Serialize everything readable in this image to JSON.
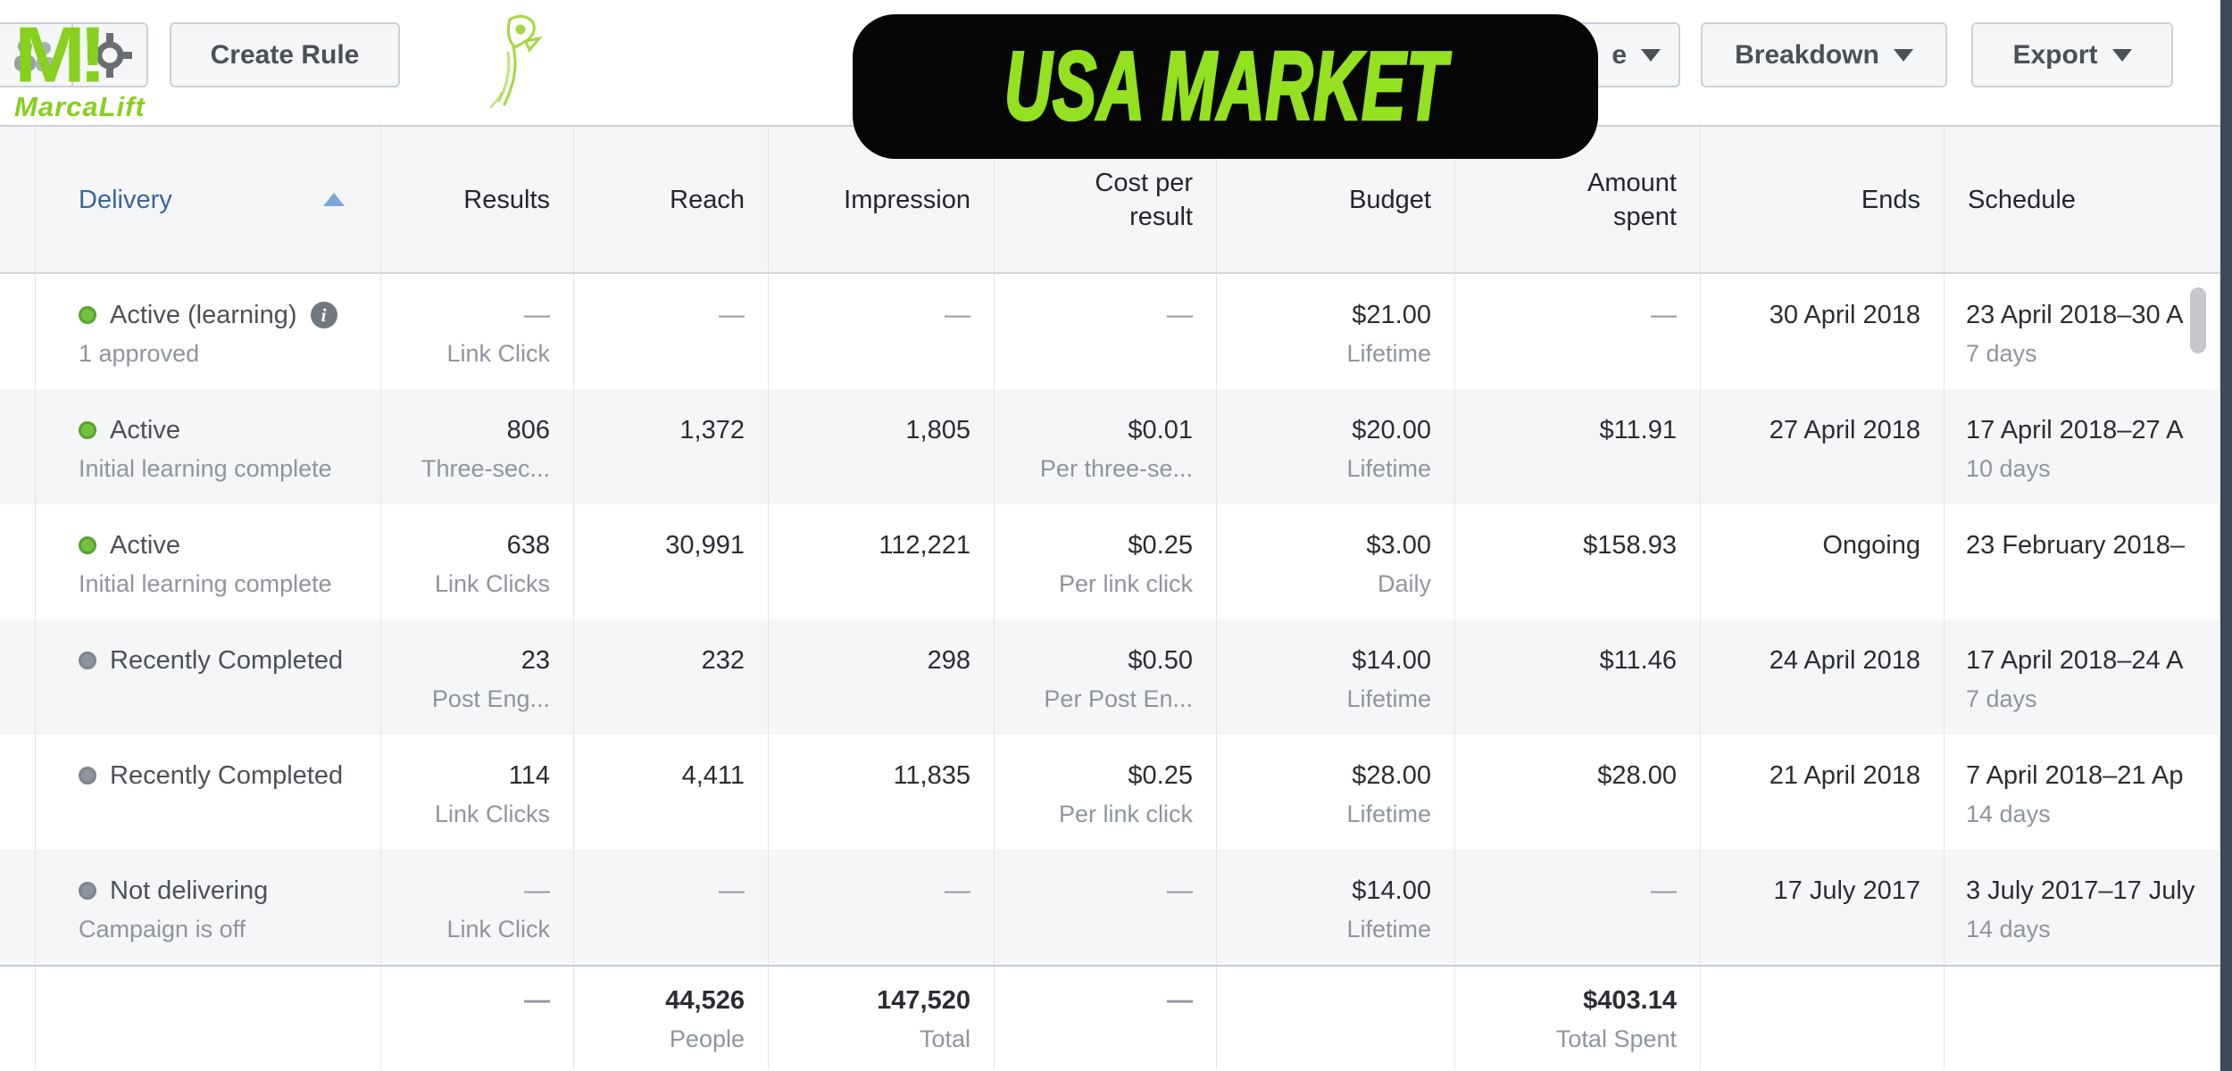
{
  "brand": {
    "logo_mark": "M!",
    "logo_name": "MarcaLift",
    "logo_color": "#86d01e"
  },
  "banner": {
    "text": "USA MARKET",
    "bg": "#060606",
    "text_color": "#93e120"
  },
  "toolbar": {
    "create_rule": "Create Rule",
    "partial_button": "e",
    "breakdown": "Breakdown",
    "export": "Export"
  },
  "table": {
    "headers": {
      "delivery": "Delivery",
      "results": "Results",
      "reach": "Reach",
      "impressions": "Impression",
      "cost_per_result": "Cost per result",
      "budget": "Budget",
      "amount_spent": "Amount spent",
      "ends": "Ends",
      "schedule": "Schedule"
    },
    "sort": {
      "column": "delivery",
      "direction": "asc"
    },
    "rows": [
      {
        "status": "Active (learning)",
        "status_note": "1 approved",
        "dot": "green",
        "info_icon": true,
        "results": "—",
        "results_label": "Link Click",
        "reach": "—",
        "impressions": "—",
        "cost": "—",
        "cost_label": "",
        "budget": "$21.00",
        "budget_type": "Lifetime",
        "spent": "—",
        "ends": "30 April 2018",
        "schedule": "23 April 2018–30 A",
        "schedule_days": "7 days"
      },
      {
        "status": "Active",
        "status_note": "Initial learning complete",
        "dot": "green",
        "info_icon": false,
        "results": "806",
        "results_label": "Three-sec...",
        "reach": "1,372",
        "impressions": "1,805",
        "cost": "$0.01",
        "cost_label": "Per three-se...",
        "budget": "$20.00",
        "budget_type": "Lifetime",
        "spent": "$11.91",
        "ends": "27 April 2018",
        "schedule": "17 April 2018–27 A",
        "schedule_days": "10 days"
      },
      {
        "status": "Active",
        "status_note": "Initial learning complete",
        "dot": "green",
        "info_icon": false,
        "results": "638",
        "results_label": "Link Clicks",
        "reach": "30,991",
        "impressions": "112,221",
        "cost": "$0.25",
        "cost_label": "Per link click",
        "budget": "$3.00",
        "budget_type": "Daily",
        "spent": "$158.93",
        "ends": "Ongoing",
        "schedule": "23 February 2018–",
        "schedule_days": ""
      },
      {
        "status": "Recently Completed",
        "status_note": "",
        "dot": "gray",
        "info_icon": false,
        "results": "23",
        "results_label": "Post Eng...",
        "reach": "232",
        "impressions": "298",
        "cost": "$0.50",
        "cost_label": "Per Post En...",
        "budget": "$14.00",
        "budget_type": "Lifetime",
        "spent": "$11.46",
        "ends": "24 April 2018",
        "schedule": "17 April 2018–24 A",
        "schedule_days": "7 days"
      },
      {
        "status": "Recently Completed",
        "status_note": "",
        "dot": "gray",
        "info_icon": false,
        "results": "114",
        "results_label": "Link Clicks",
        "reach": "4,411",
        "impressions": "11,835",
        "cost": "$0.25",
        "cost_label": "Per link click",
        "budget": "$28.00",
        "budget_type": "Lifetime",
        "spent": "$28.00",
        "ends": "21 April 2018",
        "schedule": "7 April 2018–21 Ap",
        "schedule_days": "14 days"
      },
      {
        "status": "Not delivering",
        "status_note": "Campaign is off",
        "dot": "gray",
        "info_icon": false,
        "results": "—",
        "results_label": "Link Click",
        "reach": "—",
        "impressions": "—",
        "cost": "—",
        "cost_label": "",
        "budget": "$14.00",
        "budget_type": "Lifetime",
        "spent": "—",
        "ends": "17 July 2017",
        "schedule": "3 July 2017–17 July",
        "schedule_days": "14 days"
      }
    ],
    "totals": {
      "results": "—",
      "reach": "44,526",
      "reach_label": "People",
      "impressions": "147,520",
      "impressions_label": "Total",
      "cost": "—",
      "spent": "$403.14",
      "spent_label": "Total Spent"
    }
  },
  "colors": {
    "accent_green": "#93e120",
    "header_blue": "#39679f",
    "dot_green": "#74bf3e",
    "dot_gray": "#8d949e",
    "zebra": "#f5f6f7",
    "scroll_strip": "#3e4a5a"
  }
}
